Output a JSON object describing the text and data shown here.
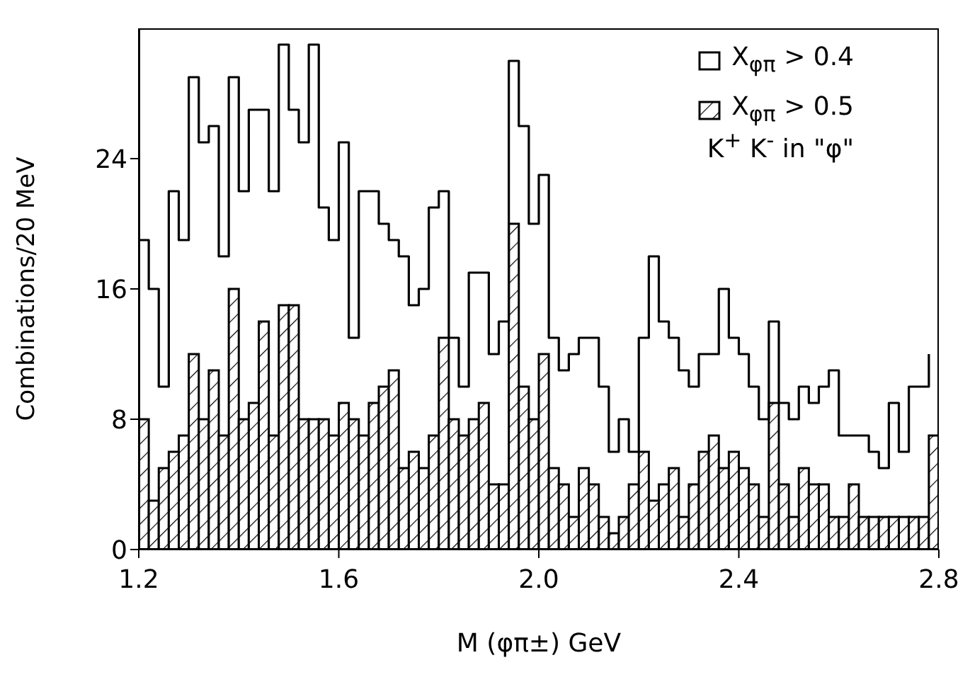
{
  "chart_data": {
    "type": "histogram",
    "xlabel": "M (φπ±) GeV",
    "ylabel": "Combinations/20 MeV",
    "bins": [
      1.2,
      1.22,
      1.24,
      1.26,
      1.28,
      1.3,
      1.32,
      1.34,
      1.36,
      1.38,
      1.4,
      1.42,
      1.44,
      1.46,
      1.48,
      1.5,
      1.52,
      1.54,
      1.56,
      1.58,
      1.6,
      1.62,
      1.64,
      1.66,
      1.68,
      1.7,
      1.72,
      1.74,
      1.76,
      1.78,
      1.8,
      1.82,
      1.84,
      1.86,
      1.88,
      1.9,
      1.92,
      1.94,
      1.96,
      1.98,
      2.0,
      2.02,
      2.04,
      2.06,
      2.08,
      2.1,
      2.12,
      2.14,
      2.16,
      2.18,
      2.2,
      2.22,
      2.24,
      2.26,
      2.28,
      2.3,
      2.32,
      2.34,
      2.36,
      2.38,
      2.4,
      2.42,
      2.44,
      2.46,
      2.48,
      2.5,
      2.52,
      2.54,
      2.56,
      2.58,
      2.6,
      2.62,
      2.64,
      2.66,
      2.68,
      2.7,
      2.72,
      2.74,
      2.76,
      2.78,
      2.8
    ],
    "series": [
      {
        "name": "X$_{φπ}$ > 0.4",
        "type": "step",
        "color": "#000000",
        "x": [
          1.2,
          1.22,
          1.24,
          1.26,
          1.28,
          1.3,
          1.32,
          1.34,
          1.36,
          1.38,
          1.4,
          1.42,
          1.44,
          1.46,
          1.48,
          1.5,
          1.52,
          1.54,
          1.56,
          1.58,
          1.6,
          1.62,
          1.64,
          1.66,
          1.68,
          1.7,
          1.72,
          1.74,
          1.76,
          1.78,
          1.8,
          1.82,
          1.84,
          1.86,
          1.88,
          1.9,
          1.92,
          1.94,
          1.96,
          1.98,
          2.0,
          2.02,
          2.04,
          2.06,
          2.08,
          2.1,
          2.12,
          2.14,
          2.16,
          2.18,
          2.2,
          2.22,
          2.24,
          2.26,
          2.28,
          2.3,
          2.32,
          2.34,
          2.36,
          2.38,
          2.4,
          2.42,
          2.44,
          2.46,
          2.48,
          2.5,
          2.52,
          2.54,
          2.56,
          2.58,
          2.6,
          2.62,
          2.64,
          2.66,
          2.68,
          2.7,
          2.72,
          2.74,
          2.76,
          2.78
        ],
        "values": [
          19,
          16,
          10,
          22,
          19,
          29,
          25,
          26,
          18,
          29,
          22,
          27,
          27,
          22,
          31,
          27,
          25,
          31,
          21,
          19,
          25,
          13,
          22,
          22,
          20,
          19,
          18,
          15,
          16,
          21,
          22,
          13,
          10,
          17,
          17,
          12,
          14,
          30,
          26,
          20,
          23,
          13,
          11,
          12,
          13,
          13,
          10,
          6,
          8,
          6,
          13,
          18,
          14,
          13,
          11,
          10,
          12,
          12,
          16,
          13,
          12,
          10,
          8,
          14,
          9,
          8,
          10,
          9,
          10,
          11,
          7,
          7,
          7,
          6,
          5,
          9,
          6,
          10,
          10,
          12
        ]
      },
      {
        "name": "X$_{φπ}$ > 0.5",
        "color": "#000000",
        "values": [
          8,
          3,
          5,
          6,
          7,
          12,
          8,
          11,
          7,
          16,
          8,
          9,
          14,
          7,
          15,
          15,
          8,
          8,
          8,
          7,
          9,
          8,
          7,
          9,
          10,
          11,
          5,
          6,
          5,
          7,
          13,
          8,
          7,
          8,
          9,
          4,
          4,
          20,
          10,
          8,
          12,
          5,
          4,
          2,
          5,
          4,
          2,
          1,
          2,
          4,
          6,
          3,
          4,
          5,
          2,
          4,
          6,
          7,
          5,
          6,
          5,
          4,
          2,
          9,
          4,
          2,
          5,
          4,
          4,
          2,
          2,
          4,
          2,
          2,
          2,
          2,
          2,
          2,
          2,
          7
        ]
      }
    ],
    "xlim": [
      1.2,
      2.8
    ],
    "xticks": [
      1.2,
      1.6,
      {
        "value": 2.0,
        "label": "2.0"
      },
      2.4,
      2.8
    ],
    "ylim": [
      0,
      32
    ],
    "yticks": [
      0,
      8,
      16,
      24
    ],
    "legend": "top right",
    "grid": false,
    "annotations": [
      "K$^{+}$ K$^{-}$ in \"φ\""
    ]
  }
}
